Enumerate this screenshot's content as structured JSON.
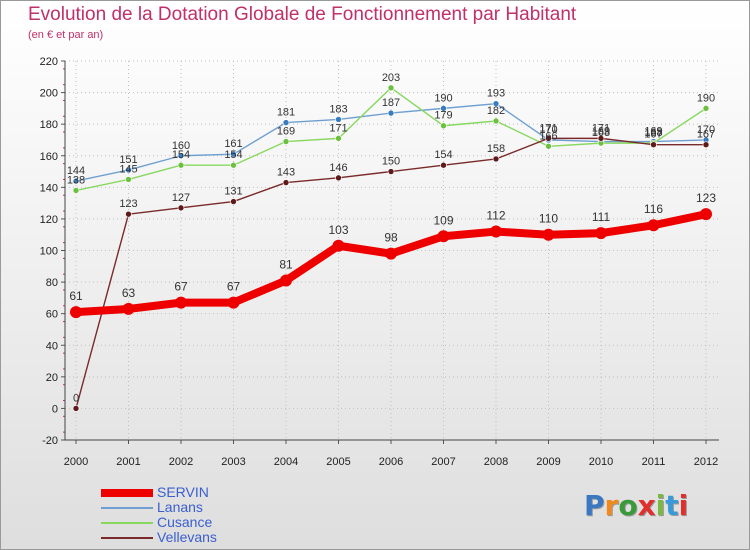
{
  "title": "Evolution de la Dotation Globale de Fonctionnement par Habitant",
  "subtitle": "(en € et par an)",
  "logo": {
    "text": "Proxiti",
    "letter_colors": [
      "#3a78c2",
      "#f08a1c",
      "#3a9a3a",
      "#e0302e",
      "#7bb841",
      "#3a9ad8",
      "#e0302e"
    ]
  },
  "chart_data": {
    "type": "line",
    "x": [
      "2000",
      "2001",
      "2002",
      "2003",
      "2004",
      "2005",
      "2006",
      "2007",
      "2008",
      "2009",
      "2010",
      "2011",
      "2012"
    ],
    "yticks": [
      "-20",
      "0",
      "20",
      "40",
      "60",
      "80",
      "100",
      "120",
      "140",
      "160",
      "180",
      "200",
      "220"
    ],
    "ylim": [
      -20,
      220
    ],
    "grid": true,
    "legend_position": "bottom-left",
    "series": [
      {
        "name": "SERVIN",
        "color": "#ee0000",
        "emphasis": true,
        "values": [
          61,
          63,
          67,
          67,
          81,
          103,
          98,
          109,
          112,
          110,
          111,
          116,
          123
        ],
        "labels": [
          "61",
          "63",
          "67",
          "67",
          "81",
          "103",
          "98",
          "109",
          "112",
          "110",
          "111",
          "116",
          "123"
        ]
      },
      {
        "name": "Lanans",
        "color": "#6f9fd0",
        "marker": "#3a7cc0",
        "values": [
          144,
          151,
          160,
          161,
          181,
          183,
          187,
          190,
          193,
          170,
          169,
          169,
          170
        ],
        "labels": [
          "144",
          "151",
          "160",
          "161",
          "181",
          "183",
          "187",
          "190",
          "193",
          "170",
          "169",
          "169",
          "170"
        ]
      },
      {
        "name": "Cusance",
        "color": "#88d860",
        "marker": "#6cc040",
        "values": [
          138,
          145,
          154,
          154,
          169,
          171,
          203,
          179,
          182,
          166,
          168,
          168,
          190
        ],
        "labels": [
          "138",
          "145",
          "154",
          "154",
          "169",
          "171",
          "203",
          "179",
          "182",
          "166",
          "168",
          "168",
          "190"
        ]
      },
      {
        "name": "Vellevans",
        "color": "#7a2a2a",
        "marker": "#5e1a1a",
        "values": [
          0,
          123,
          127,
          131,
          143,
          146,
          150,
          154,
          158,
          171,
          171,
          167,
          167
        ],
        "labels": [
          "0",
          "123",
          "127",
          "131",
          "143",
          "146",
          "150",
          "154",
          "158",
          "171",
          "171",
          "167",
          "167"
        ]
      }
    ]
  }
}
